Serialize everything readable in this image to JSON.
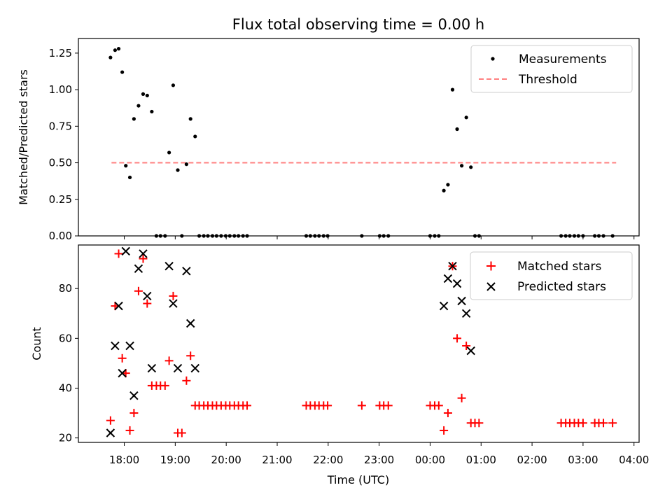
{
  "title": "Flux total observing time = 0.00 h",
  "colors": {
    "measurements": "#000000",
    "threshold": "#ff8080",
    "matched": "#ff0000",
    "predicted": "#000000"
  },
  "chart_data": [
    {
      "type": "scatter",
      "ylabel": "Matched/Predicted stars",
      "ylim": [
        0,
        1.35
      ],
      "yticks": [
        "0.00",
        "0.25",
        "0.50",
        "0.75",
        "1.00",
        "1.25"
      ],
      "xlim_hours": [
        17.1,
        28.1
      ],
      "legend_position": "top-right",
      "legend": {
        "measurements": "Measurements",
        "threshold": "Threshold"
      },
      "threshold": {
        "x": [
          17.75,
          27.65
        ],
        "y": 0.5
      },
      "series": [
        {
          "name": "Measurements",
          "points": [
            [
              17.73,
              1.22
            ],
            [
              17.82,
              1.27
            ],
            [
              17.89,
              1.28
            ],
            [
              17.96,
              1.12
            ],
            [
              18.03,
              0.48
            ],
            [
              18.11,
              0.4
            ],
            [
              18.19,
              0.8
            ],
            [
              18.28,
              0.89
            ],
            [
              18.37,
              0.97
            ],
            [
              18.45,
              0.96
            ],
            [
              18.54,
              0.85
            ],
            [
              18.63,
              0.0
            ],
            [
              18.71,
              0.0
            ],
            [
              18.8,
              0.0
            ],
            [
              18.88,
              0.57
            ],
            [
              18.96,
              1.03
            ],
            [
              19.05,
              0.45
            ],
            [
              19.13,
              0.0
            ],
            [
              19.22,
              0.49
            ],
            [
              19.3,
              0.8
            ],
            [
              19.39,
              0.68
            ],
            [
              19.47,
              0.0
            ],
            [
              19.56,
              0.0
            ],
            [
              19.64,
              0.0
            ],
            [
              19.73,
              0.0
            ],
            [
              19.81,
              0.0
            ],
            [
              19.9,
              0.0
            ],
            [
              19.99,
              0.0
            ],
            [
              20.07,
              0.0
            ],
            [
              20.16,
              0.0
            ],
            [
              20.24,
              0.0
            ],
            [
              20.33,
              0.0
            ],
            [
              20.41,
              0.0
            ],
            [
              21.57,
              0.0
            ],
            [
              21.65,
              0.0
            ],
            [
              21.74,
              0.0
            ],
            [
              21.82,
              0.0
            ],
            [
              21.91,
              0.0
            ],
            [
              21.99,
              0.0
            ],
            [
              22.66,
              0.0
            ],
            [
              23.01,
              0.0
            ],
            [
              23.09,
              0.0
            ],
            [
              23.18,
              0.0
            ],
            [
              24.0,
              0.0
            ],
            [
              24.09,
              0.0
            ],
            [
              24.17,
              0.0
            ],
            [
              24.27,
              0.31
            ],
            [
              24.35,
              0.35
            ],
            [
              24.44,
              1.0
            ],
            [
              24.53,
              0.73
            ],
            [
              24.62,
              0.48
            ],
            [
              24.71,
              0.81
            ],
            [
              24.8,
              0.47
            ],
            [
              24.88,
              0.0
            ],
            [
              24.96,
              0.0
            ],
            [
              26.57,
              0.0
            ],
            [
              26.66,
              0.0
            ],
            [
              26.74,
              0.0
            ],
            [
              26.83,
              0.0
            ],
            [
              26.91,
              0.0
            ],
            [
              27.0,
              0.0
            ],
            [
              27.23,
              0.0
            ],
            [
              27.31,
              0.0
            ],
            [
              27.4,
              0.0
            ],
            [
              27.58,
              0.0
            ]
          ]
        }
      ]
    },
    {
      "type": "scatter",
      "ylabel": "Count",
      "xlabel": "Time (UTC)",
      "ylim": [
        18.2,
        97.5
      ],
      "yticks": [
        "20",
        "40",
        "60",
        "80"
      ],
      "xlim_hours": [
        17.1,
        28.1
      ],
      "xticks": [
        "18:00",
        "19:00",
        "20:00",
        "21:00",
        "22:00",
        "23:00",
        "00:00",
        "01:00",
        "02:00",
        "03:00",
        "04:00"
      ],
      "legend_position": "top-right",
      "series": [
        {
          "name": "Matched stars",
          "points": [
            [
              17.73,
              27
            ],
            [
              17.82,
              73
            ],
            [
              17.89,
              94
            ],
            [
              17.96,
              52
            ],
            [
              18.03,
              46
            ],
            [
              18.11,
              23
            ],
            [
              18.19,
              30
            ],
            [
              18.28,
              79
            ],
            [
              18.37,
              92
            ],
            [
              18.45,
              74
            ],
            [
              18.54,
              41
            ],
            [
              18.63,
              41
            ],
            [
              18.71,
              41
            ],
            [
              18.8,
              41
            ],
            [
              18.88,
              51
            ],
            [
              18.96,
              77
            ],
            [
              19.05,
              22
            ],
            [
              19.13,
              22
            ],
            [
              19.22,
              43
            ],
            [
              19.3,
              53
            ],
            [
              19.39,
              33
            ],
            [
              19.47,
              33
            ],
            [
              19.56,
              33
            ],
            [
              19.64,
              33
            ],
            [
              19.73,
              33
            ],
            [
              19.81,
              33
            ],
            [
              19.9,
              33
            ],
            [
              19.99,
              33
            ],
            [
              20.07,
              33
            ],
            [
              20.16,
              33
            ],
            [
              20.24,
              33
            ],
            [
              20.33,
              33
            ],
            [
              20.41,
              33
            ],
            [
              21.57,
              33
            ],
            [
              21.65,
              33
            ],
            [
              21.74,
              33
            ],
            [
              21.82,
              33
            ],
            [
              21.91,
              33
            ],
            [
              21.99,
              33
            ],
            [
              22.66,
              33
            ],
            [
              23.01,
              33
            ],
            [
              23.09,
              33
            ],
            [
              23.18,
              33
            ],
            [
              24.0,
              33
            ],
            [
              24.09,
              33
            ],
            [
              24.17,
              33
            ],
            [
              24.27,
              23
            ],
            [
              24.35,
              30
            ],
            [
              24.44,
              89
            ],
            [
              24.53,
              60
            ],
            [
              24.62,
              36
            ],
            [
              24.71,
              57
            ],
            [
              24.8,
              26
            ],
            [
              24.88,
              26
            ],
            [
              24.96,
              26
            ],
            [
              26.57,
              26
            ],
            [
              26.66,
              26
            ],
            [
              26.74,
              26
            ],
            [
              26.83,
              26
            ],
            [
              26.91,
              26
            ],
            [
              27.0,
              26
            ],
            [
              27.23,
              26
            ],
            [
              27.31,
              26
            ],
            [
              27.4,
              26
            ],
            [
              27.58,
              26
            ]
          ]
        },
        {
          "name": "Predicted stars",
          "points": [
            [
              17.73,
              22
            ],
            [
              17.82,
              57
            ],
            [
              17.89,
              73
            ],
            [
              17.96,
              46
            ],
            [
              18.03,
              95
            ],
            [
              18.11,
              57
            ],
            [
              18.19,
              37
            ],
            [
              18.28,
              88
            ],
            [
              18.37,
              94
            ],
            [
              18.45,
              77
            ],
            [
              18.54,
              48
            ],
            [
              18.88,
              89
            ],
            [
              18.96,
              74
            ],
            [
              19.05,
              48
            ],
            [
              19.22,
              87
            ],
            [
              19.3,
              66
            ],
            [
              19.39,
              48
            ],
            [
              24.27,
              73
            ],
            [
              24.35,
              84
            ],
            [
              24.44,
              89
            ],
            [
              24.53,
              82
            ],
            [
              24.62,
              75
            ],
            [
              24.71,
              70
            ],
            [
              24.8,
              55
            ]
          ]
        }
      ]
    }
  ]
}
